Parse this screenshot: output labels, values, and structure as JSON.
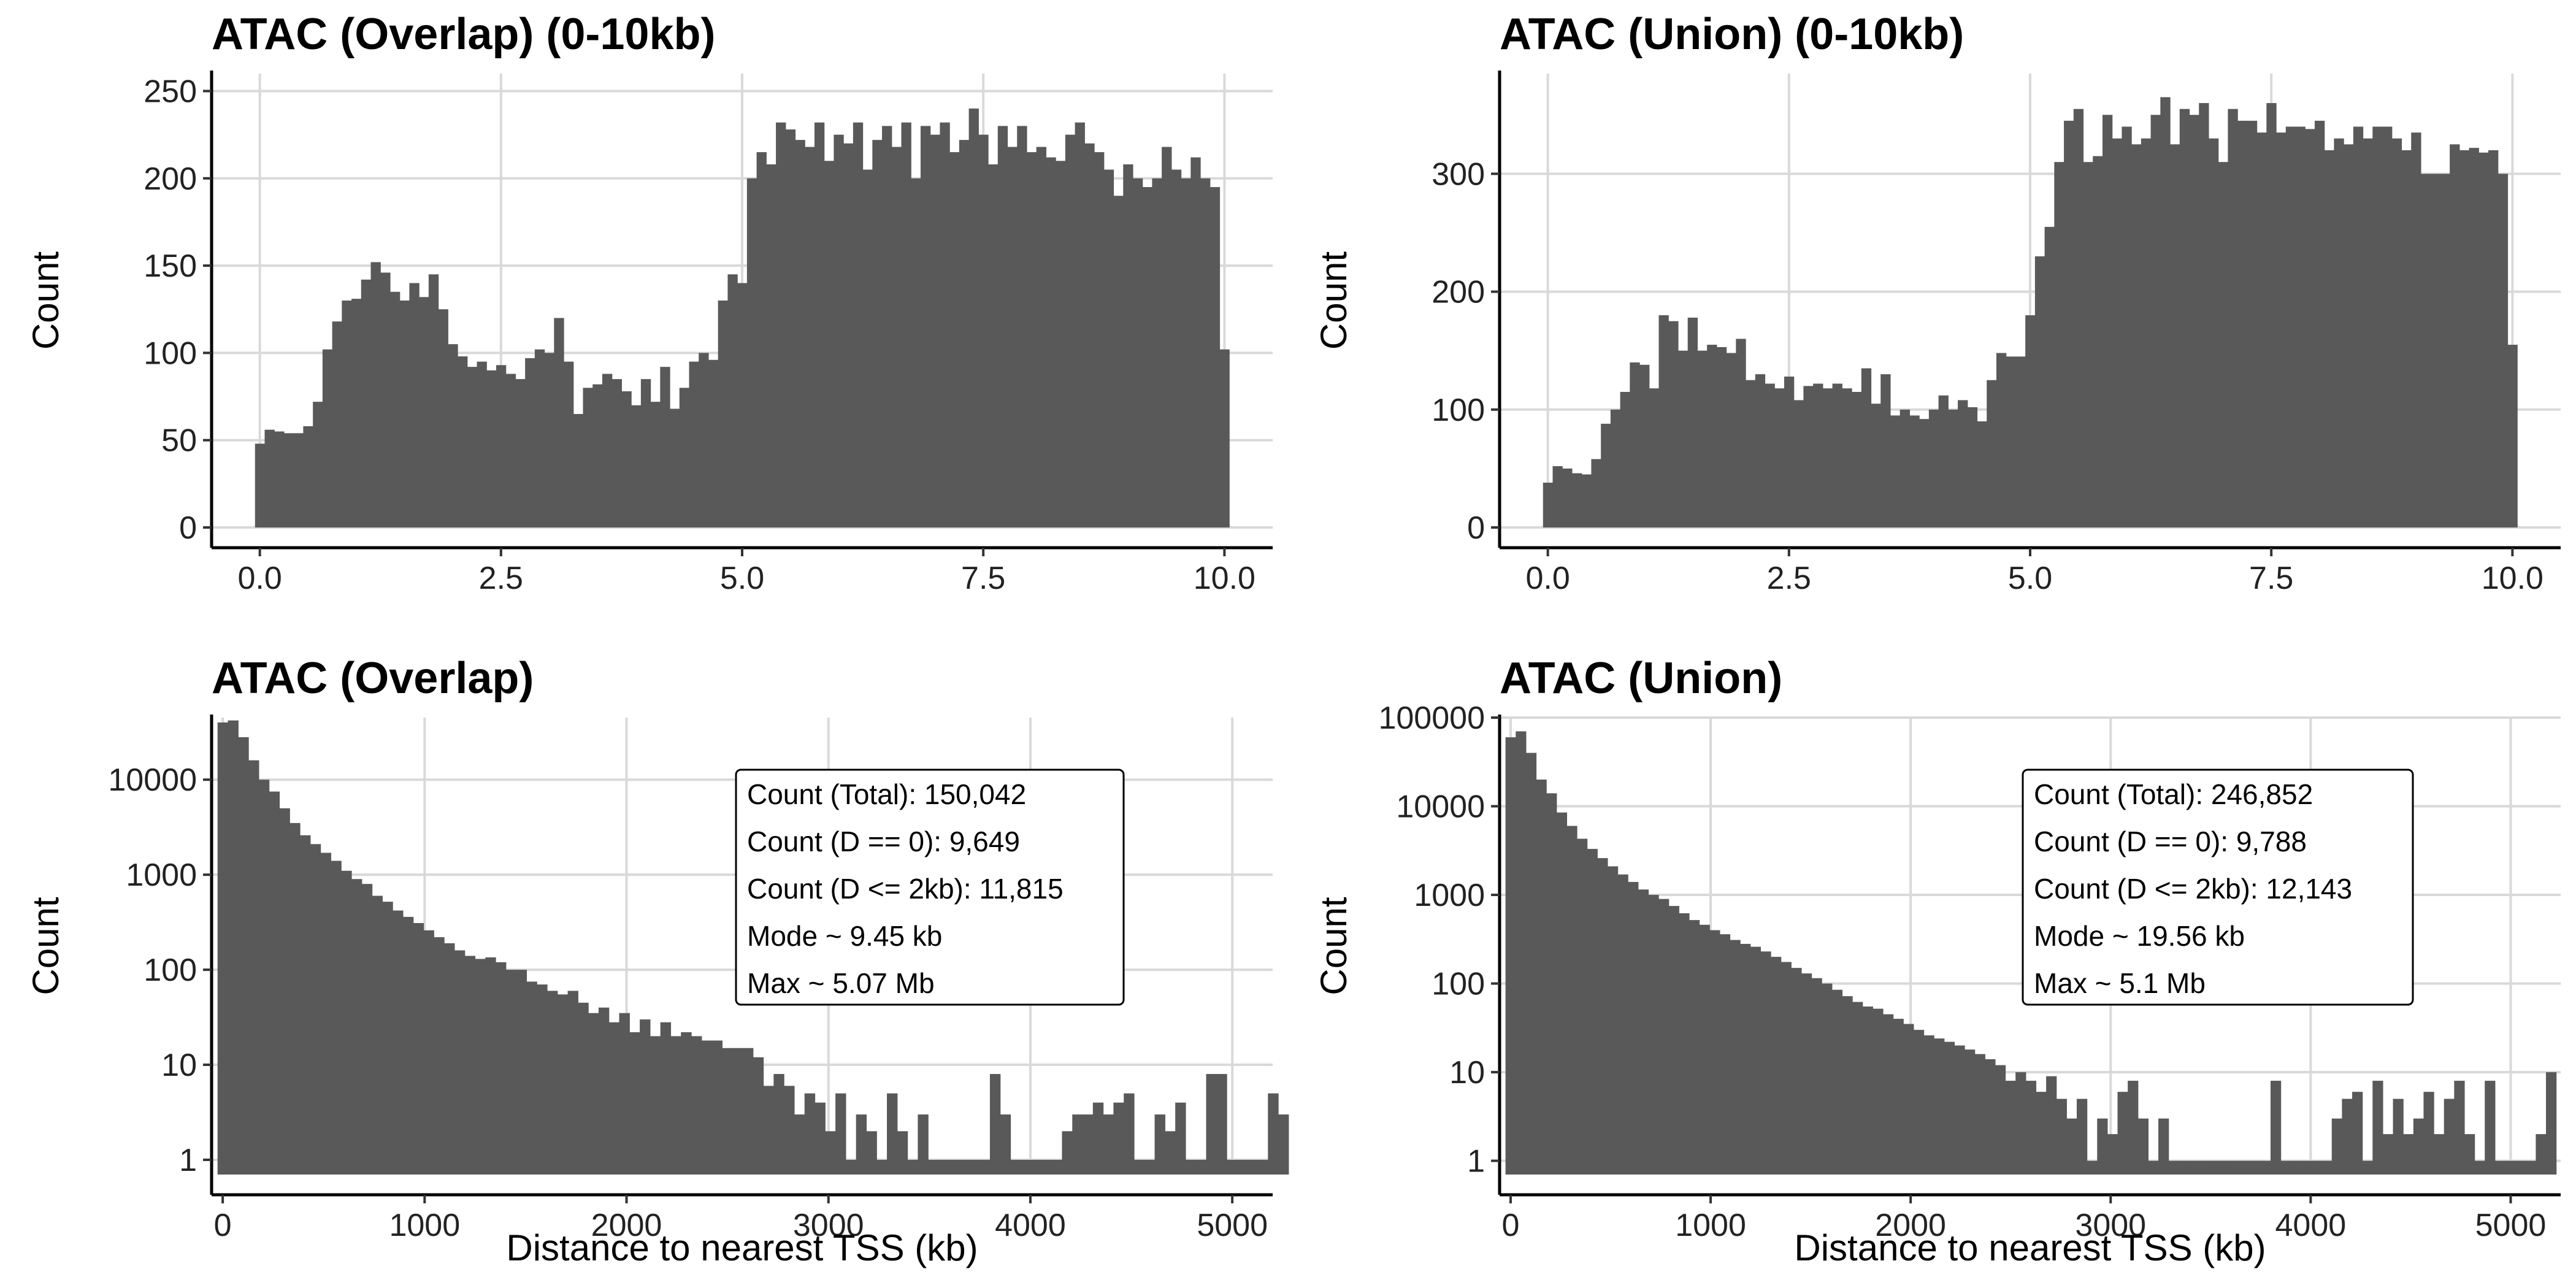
{
  "chart_data": [
    {
      "type": "bar",
      "title": "ATAC (Overlap) (0-10kb)",
      "xlabel": "",
      "ylabel": "Count",
      "xlim": [
        -0.5,
        10.5
      ],
      "ylim": [
        0,
        260
      ],
      "xticks": [
        0,
        2.5,
        5,
        7.5,
        10
      ],
      "xtick_labels": [
        "0.0",
        "2.5",
        "5.0",
        "7.5",
        "10.0"
      ],
      "yticks": [
        0,
        50,
        100,
        150,
        200,
        250
      ],
      "ytick_labels": [
        "0",
        "50",
        "100",
        "150",
        "200",
        "250"
      ],
      "log_y": false,
      "grid": true,
      "bin_start": -0.05,
      "bin_width": 0.1,
      "values": [
        48,
        56,
        55,
        54,
        54,
        58,
        72,
        102,
        118,
        130,
        131,
        142,
        152,
        146,
        135,
        130,
        140,
        132,
        145,
        125,
        105,
        98,
        92,
        95,
        90,
        93,
        88,
        85,
        97,
        102,
        100,
        120,
        95,
        65,
        80,
        82,
        88,
        85,
        78,
        70,
        85,
        72,
        92,
        68,
        80,
        95,
        100,
        96,
        130,
        145,
        140,
        200,
        215,
        208,
        232,
        228,
        222,
        218,
        232,
        210,
        225,
        220,
        232,
        205,
        222,
        230,
        218,
        232,
        200,
        230,
        225,
        232,
        215,
        222,
        240,
        225,
        208,
        230,
        218,
        230,
        215,
        218,
        212,
        210,
        225,
        232,
        220,
        215,
        205,
        190,
        208,
        200,
        195,
        200,
        218,
        205,
        200,
        212,
        200,
        195,
        102
      ]
    },
    {
      "type": "bar",
      "title": "ATAC (Union) (0-10kb)",
      "xlabel": "",
      "ylabel": "Count",
      "xlim": [
        -0.5,
        10.5
      ],
      "ylim": [
        0,
        385
      ],
      "xticks": [
        0,
        2.5,
        5,
        7.5,
        10
      ],
      "xtick_labels": [
        "0.0",
        "2.5",
        "5.0",
        "7.5",
        "10.0"
      ],
      "yticks": [
        0,
        100,
        200,
        300
      ],
      "ytick_labels": [
        "0",
        "100",
        "200",
        "300"
      ],
      "log_y": false,
      "grid": true,
      "bin_start": -0.05,
      "bin_width": 0.1,
      "values": [
        38,
        52,
        50,
        46,
        45,
        58,
        88,
        100,
        115,
        140,
        138,
        118,
        180,
        175,
        150,
        178,
        150,
        155,
        153,
        148,
        160,
        125,
        130,
        122,
        118,
        128,
        108,
        120,
        122,
        118,
        122,
        118,
        115,
        135,
        105,
        130,
        95,
        100,
        95,
        92,
        100,
        112,
        100,
        108,
        102,
        90,
        125,
        148,
        145,
        145,
        180,
        230,
        255,
        310,
        345,
        355,
        310,
        315,
        350,
        330,
        340,
        325,
        330,
        350,
        365,
        325,
        355,
        350,
        360,
        330,
        310,
        355,
        345,
        345,
        335,
        360,
        335,
        340,
        340,
        338,
        345,
        320,
        330,
        325,
        340,
        330,
        340,
        340,
        330,
        320,
        335,
        300,
        300,
        300,
        325,
        320,
        322,
        318,
        320,
        300,
        155
      ]
    },
    {
      "type": "bar",
      "title": "ATAC (Overlap)",
      "xlabel": "Distance to nearest TSS (kb)",
      "ylabel": "Count",
      "xlim": [
        -55,
        5200
      ],
      "log_y": true,
      "ylim": [
        0.7,
        45000
      ],
      "xticks": [
        0,
        1000,
        2000,
        3000,
        4000,
        5000
      ],
      "xtick_labels": [
        "0",
        "1000",
        "2000",
        "3000",
        "4000",
        "5000"
      ],
      "yticks": [
        1,
        10,
        100,
        1000,
        10000
      ],
      "ytick_labels": [
        "1",
        "10",
        "100",
        "1000",
        "10000"
      ],
      "grid": true,
      "bin_start": -25.5,
      "bin_width": 51,
      "values": [
        40000,
        42000,
        28000,
        16000,
        10000,
        7500,
        5000,
        3500,
        2600,
        2100,
        1700,
        1400,
        1100,
        900,
        800,
        600,
        520,
        420,
        360,
        310,
        260,
        220,
        190,
        160,
        140,
        130,
        135,
        120,
        100,
        100,
        75,
        70,
        60,
        55,
        60,
        45,
        35,
        40,
        28,
        35,
        22,
        30,
        20,
        28,
        20,
        22,
        20,
        18,
        18,
        15,
        15,
        15,
        12,
        6,
        8,
        6,
        3,
        5,
        4,
        2,
        5,
        1,
        3,
        2,
        1,
        5,
        2,
        1,
        3,
        1,
        1,
        1,
        1,
        1,
        1,
        8,
        3,
        1,
        1,
        1,
        1,
        1,
        2,
        3,
        3,
        4,
        3,
        4,
        5,
        1,
        1,
        3,
        2,
        4,
        1,
        1,
        8,
        8,
        1,
        1,
        1,
        1,
        5,
        3
      ]
    },
    {
      "type": "bar",
      "title": "ATAC (Union)",
      "xlabel": "Distance to nearest TSS (kb)",
      "ylabel": "Count",
      "xlim": [
        -55,
        5250
      ],
      "log_y": true,
      "ylim": [
        0.7,
        100000
      ],
      "xticks": [
        0,
        1000,
        2000,
        3000,
        4000,
        5000
      ],
      "xtick_labels": [
        "0",
        "1000",
        "2000",
        "3000",
        "4000",
        "5000"
      ],
      "yticks": [
        1,
        10,
        100,
        1000,
        10000,
        100000
      ],
      "ytick_labels": [
        "1",
        "10",
        "100",
        "1000",
        "10000",
        "100000"
      ],
      "grid": true,
      "bin_start": -25.5,
      "bin_width": 51,
      "values": [
        60000,
        70000,
        40000,
        20000,
        14000,
        8500,
        6000,
        4300,
        3300,
        2600,
        2100,
        1700,
        1400,
        1150,
        1000,
        900,
        750,
        620,
        520,
        460,
        400,
        360,
        310,
        280,
        260,
        230,
        200,
        175,
        150,
        130,
        115,
        100,
        85,
        72,
        62,
        55,
        52,
        45,
        40,
        35,
        30,
        26,
        24,
        22,
        20,
        18,
        16,
        14,
        12,
        8,
        10,
        8,
        6,
        9,
        5,
        3,
        5,
        1,
        3,
        2,
        6,
        8,
        3,
        1,
        3,
        1,
        1,
        1,
        1,
        1,
        1,
        1,
        1,
        1,
        1,
        8,
        1,
        1,
        1,
        1,
        1,
        3,
        5,
        6,
        1,
        8,
        2,
        5,
        2,
        3,
        6,
        2,
        5,
        8,
        2,
        1,
        8,
        1,
        1,
        1,
        1,
        2,
        10
      ]
    }
  ],
  "stats": {
    "overlap": [
      "Count (Total): 150,042",
      "Count (D == 0): 9,649",
      "Count (D <= 2kb): 11,815",
      "Mode ~ 9.45 kb",
      "Max ~ 5.07 Mb"
    ],
    "union": [
      "Count (Total): 246,852",
      "Count (D == 0): 9,788",
      "Count (D <= 2kb): 12,143",
      "Mode ~ 19.56 kb",
      "Max ~ 5.1 Mb"
    ]
  }
}
